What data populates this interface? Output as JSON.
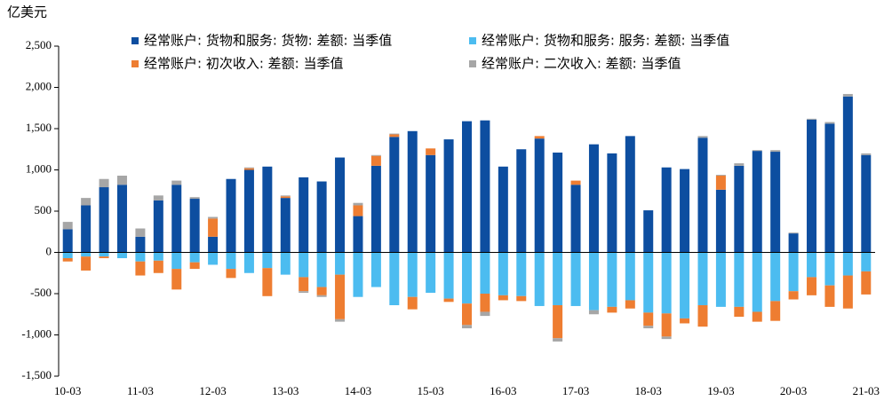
{
  "chart_data": {
    "type": "stacked-bar",
    "ylabel": "亿美元",
    "categories": [
      "10-03",
      null,
      null,
      null,
      "11-03",
      null,
      null,
      null,
      "12-03",
      null,
      null,
      null,
      "13-03",
      null,
      null,
      null,
      "14-03",
      null,
      null,
      null,
      "15-03",
      null,
      null,
      null,
      "16-03",
      null,
      null,
      null,
      "17-03",
      null,
      null,
      null,
      "18-03",
      null,
      null,
      null,
      "19-03",
      null,
      null,
      null,
      "20-03",
      null,
      null,
      null,
      "21-03"
    ],
    "series": [
      {
        "name": "经常账户: 货物和服务: 货物: 差额: 当季值",
        "color": "#0d4ea0",
        "values": [
          280,
          570,
          790,
          820,
          190,
          630,
          820,
          650,
          190,
          890,
          1000,
          1040,
          660,
          910,
          860,
          1150,
          440,
          1050,
          1400,
          1470,
          1180,
          1370,
          1590,
          1600,
          1040,
          1250,
          1380,
          1210,
          820,
          1310,
          1200,
          1410,
          510,
          1030,
          1010,
          1390,
          760,
          1050,
          1230,
          1220,
          230,
          1610,
          1560,
          1890,
          1180
        ]
      },
      {
        "name": "经常账户: 货物和服务: 服务: 差额: 当季值",
        "color": "#4cbcf0",
        "values": [
          -70,
          -50,
          -50,
          -70,
          -110,
          -100,
          -200,
          -120,
          -150,
          -200,
          -250,
          -190,
          -270,
          -300,
          -420,
          -270,
          -540,
          -420,
          -640,
          -540,
          -490,
          -560,
          -620,
          -500,
          -520,
          -530,
          -650,
          -640,
          -650,
          -700,
          -660,
          -580,
          -730,
          -740,
          -800,
          -640,
          -660,
          -660,
          -720,
          -590,
          -470,
          -300,
          -400,
          -280,
          -230
        ]
      },
      {
        "name": "经常账户: 初次收入: 差额: 当季值",
        "color": "#ee7d31",
        "values": [
          -40,
          -170,
          -20,
          0,
          -170,
          -150,
          -250,
          -80,
          220,
          -110,
          20,
          -340,
          20,
          -170,
          -100,
          -540,
          130,
          120,
          30,
          -150,
          80,
          -40,
          -260,
          -220,
          -60,
          -60,
          30,
          -400,
          50,
          0,
          -70,
          -100,
          -160,
          -280,
          -60,
          -260,
          170,
          -120,
          -120,
          -240,
          -100,
          -220,
          -260,
          -400,
          -280
        ]
      },
      {
        "name": "经常账户: 二次收入: 差额: 当季值",
        "color": "#a6a6a6",
        "values": [
          90,
          90,
          100,
          110,
          100,
          60,
          50,
          20,
          20,
          0,
          10,
          0,
          10,
          -20,
          -20,
          -30,
          30,
          10,
          10,
          0,
          0,
          0,
          -40,
          -50,
          0,
          0,
          0,
          -40,
          0,
          -50,
          0,
          0,
          -30,
          -30,
          0,
          20,
          10,
          30,
          10,
          20,
          10,
          10,
          20,
          30,
          20
        ]
      }
    ],
    "ylim": [
      -1500,
      2500
    ],
    "yticks": [
      {
        "value": 2500,
        "label": "2,500"
      },
      {
        "value": 2000,
        "label": "2,000"
      },
      {
        "value": 1500,
        "label": "1,500"
      },
      {
        "value": 1000,
        "label": "1,000"
      },
      500,
      0,
      -500,
      {
        "value": -1000,
        "label": "-1,000"
      },
      {
        "value": -1500,
        "label": "-1,500"
      }
    ]
  }
}
